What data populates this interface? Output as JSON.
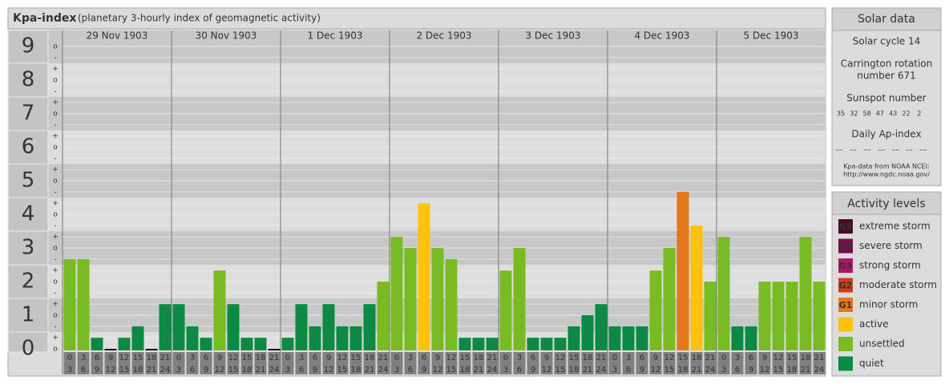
{
  "chart_data": {
    "type": "bar",
    "title": "Kpa-index",
    "subtitle": "(planetary 3-hourly index of geomagnetic activity)",
    "ylim": [
      0,
      9.5
    ],
    "yticks": [
      0,
      1,
      2,
      3,
      4,
      5,
      6,
      7,
      8,
      9
    ],
    "grid": true,
    "yminor": [
      {
        "value": 0,
        "label": "o"
      },
      {
        "value": 0.33,
        "label": "+"
      },
      {
        "value": 0.67,
        "label": "-"
      },
      {
        "value": 1,
        "label": "o"
      },
      {
        "value": 1.33,
        "label": "+"
      },
      {
        "value": 1.67,
        "label": "-"
      },
      {
        "value": 2,
        "label": "o"
      },
      {
        "value": 2.33,
        "label": "+"
      },
      {
        "value": 2.67,
        "label": "-"
      },
      {
        "value": 3,
        "label": "o"
      },
      {
        "value": 3.33,
        "label": "+"
      },
      {
        "value": 3.67,
        "label": "-"
      },
      {
        "value": 4,
        "label": "o"
      },
      {
        "value": 4.33,
        "label": "+"
      },
      {
        "value": 4.67,
        "label": "-"
      },
      {
        "value": 5,
        "label": "o"
      },
      {
        "value": 5.33,
        "label": "+"
      },
      {
        "value": 5.67,
        "label": "-"
      },
      {
        "value": 6,
        "label": "o"
      },
      {
        "value": 6.33,
        "label": "+"
      },
      {
        "value": 6.67,
        "label": "-"
      },
      {
        "value": 7,
        "label": "o"
      },
      {
        "value": 7.33,
        "label": "+"
      },
      {
        "value": 7.67,
        "label": "-"
      },
      {
        "value": 8,
        "label": "o"
      },
      {
        "value": 8.33,
        "label": "+"
      },
      {
        "value": 8.67,
        "label": "-"
      },
      {
        "value": 9,
        "label": "o"
      }
    ],
    "hours": [
      [
        "0",
        "3"
      ],
      [
        "3",
        "6"
      ],
      [
        "6",
        "9"
      ],
      [
        "9",
        "12"
      ],
      [
        "12",
        "15"
      ],
      [
        "15",
        "18"
      ],
      [
        "18",
        "21"
      ],
      [
        "21",
        "24"
      ]
    ],
    "days": [
      {
        "date": "29 Nov 1903",
        "values": [
          2.67,
          2.67,
          0.33,
          0,
          0.33,
          0.67,
          0,
          1.33
        ],
        "colors": [
          "#78bb22",
          "#78bb22",
          "#0c8a43",
          "#0c8a43",
          "#0c8a43",
          "#0c8a43",
          "#0c8a43",
          "#0c8a43"
        ]
      },
      {
        "date": "30 Nov 1903",
        "values": [
          1.33,
          0.67,
          0.33,
          2.33,
          1.33,
          0.33,
          0.33,
          0
        ],
        "colors": [
          "#0c8a43",
          "#0c8a43",
          "#0c8a43",
          "#78bb22",
          "#0c8a43",
          "#0c8a43",
          "#0c8a43",
          "#0c8a43"
        ]
      },
      {
        "date": "1 Dec 1903",
        "values": [
          0.33,
          1.33,
          0.67,
          1.33,
          0.67,
          0.67,
          1.33,
          2
        ],
        "colors": [
          "#0c8a43",
          "#0c8a43",
          "#0c8a43",
          "#0c8a43",
          "#0c8a43",
          "#0c8a43",
          "#0c8a43",
          "#78bb22"
        ]
      },
      {
        "date": "2 Dec 1903",
        "values": [
          3.33,
          3,
          4.33,
          3,
          2.67,
          0.33,
          0.33,
          0.33
        ],
        "colors": [
          "#78bb22",
          "#78bb22",
          "#fec20c",
          "#78bb22",
          "#78bb22",
          "#0c8a43",
          "#0c8a43",
          "#0c8a43"
        ]
      },
      {
        "date": "3 Dec 1903",
        "values": [
          2.33,
          3,
          0.33,
          0.33,
          0.33,
          0.67,
          1,
          1.33
        ],
        "colors": [
          "#78bb22",
          "#78bb22",
          "#0c8a43",
          "#0c8a43",
          "#0c8a43",
          "#0c8a43",
          "#0c8a43",
          "#0c8a43"
        ]
      },
      {
        "date": "4 Dec 1903",
        "values": [
          0.67,
          0.67,
          0.67,
          2.33,
          3,
          4.67,
          3.67,
          2
        ],
        "colors": [
          "#0c8a43",
          "#0c8a43",
          "#0c8a43",
          "#78bb22",
          "#78bb22",
          "#e2771c",
          "#fec20c",
          "#78bb22"
        ]
      },
      {
        "date": "5 Dec 1903",
        "values": [
          3.33,
          0.67,
          0.67,
          2,
          2,
          2,
          3.33,
          2
        ],
        "colors": [
          "#78bb22",
          "#0c8a43",
          "#0c8a43",
          "#78bb22",
          "#78bb22",
          "#78bb22",
          "#78bb22",
          "#78bb22"
        ]
      }
    ]
  },
  "solar": {
    "title": "Solar data",
    "cycle": "Solar cycle 14",
    "carrington": [
      "Carrington rotation",
      "number 671"
    ],
    "sunspot_title": "Sunspot number",
    "sunspot": [
      "35",
      "32",
      "58",
      "47",
      "43",
      "22",
      "2"
    ],
    "ap_title": "Daily Ap-index",
    "ap": [
      "––",
      "––",
      "––",
      "––",
      "––",
      "––",
      "––"
    ],
    "source": [
      "Kpa-data from NOAA NCEI:",
      "http://www.ngdc.noaa.gov/"
    ]
  },
  "activity": {
    "title": "Activity levels",
    "levels": [
      {
        "badge": "G5",
        "label": "extreme storm",
        "color": "#4a0a2a"
      },
      {
        "badge": "G4",
        "label": "severe storm",
        "color": "#7a0a4a"
      },
      {
        "badge": "G3",
        "label": "strong storm",
        "color": "#b0146a"
      },
      {
        "badge": "G2",
        "label": "moderate storm",
        "color": "#cc3e1e"
      },
      {
        "badge": "G1",
        "label": "minor storm",
        "color": "#e2771c"
      },
      {
        "badge": null,
        "label": "active",
        "color": "#fec20c"
      },
      {
        "badge": null,
        "label": "unsettled",
        "color": "#78bb22"
      },
      {
        "badge": null,
        "label": "quiet",
        "color": "#0c8a43"
      }
    ]
  }
}
